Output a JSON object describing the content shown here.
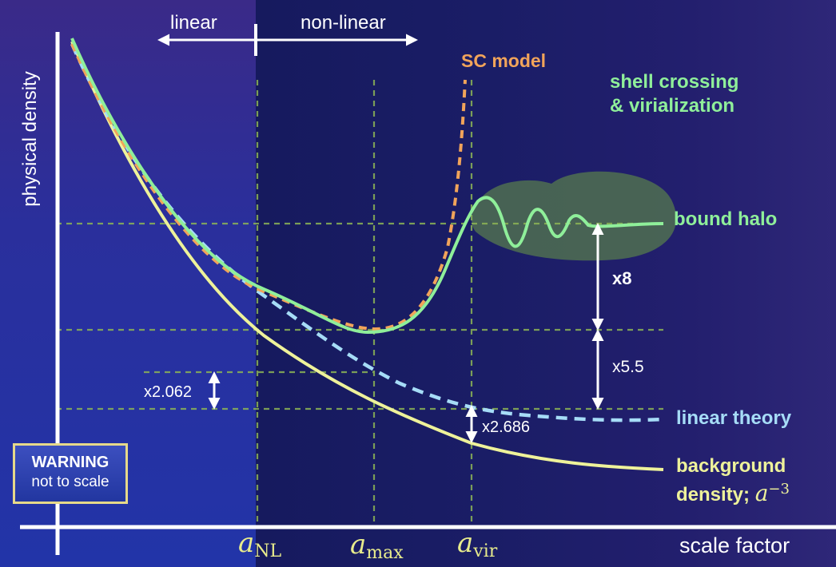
{
  "axes": {
    "y_label": "physical density",
    "x_label": "scale factor"
  },
  "regimes": {
    "linear": "linear",
    "nonlinear": "non-linear"
  },
  "curves": {
    "sc_model": "SC model",
    "shell_crossing_line1": "shell crossing",
    "shell_crossing_line2": "& virialization",
    "bound_halo": "bound halo",
    "linear_theory": "linear theory",
    "background_line1": "background",
    "background_line2": "density; ",
    "background_power_base": "a",
    "background_power_exp": "−3"
  },
  "ticks": {
    "a_nl_base": "a",
    "a_nl_sub": "NL",
    "a_max_base": "a",
    "a_max_sub": "max",
    "a_vir_base": "a",
    "a_vir_sub": "vir"
  },
  "ratios": {
    "x8": "x8",
    "x5_5": "x5.5",
    "x2_062": "x2.062",
    "x2_686": "x2.686"
  },
  "warning": {
    "title": "WARNING",
    "subtitle": "not to scale"
  },
  "colors": {
    "sc_model": "#f1a45a",
    "halo": "#8fef9a",
    "linear_theory": "#a6dcf7",
    "background": "#eef29a",
    "guides": "#8db556"
  }
}
